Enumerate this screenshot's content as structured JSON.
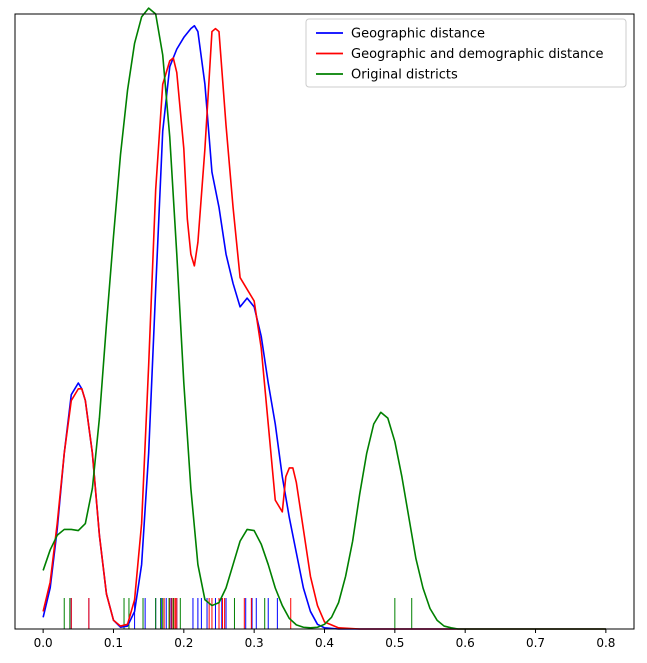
{
  "chart_data": {
    "type": "line",
    "title": "",
    "xlabel": "",
    "ylabel": "",
    "xlim": [
      -0.04,
      0.84
    ],
    "ylim": [
      0,
      1.05
    ],
    "yticks_visible": false,
    "xticks": [
      0.0,
      0.1,
      0.2,
      0.3,
      0.4,
      0.5,
      0.6,
      0.7,
      0.8
    ],
    "xtick_labels": [
      "0.0",
      "0.1",
      "0.2",
      "0.3",
      "0.4",
      "0.5",
      "0.6",
      "0.7",
      "0.8"
    ],
    "legend_position": "top-right",
    "series": [
      {
        "name": "Geographic distance",
        "color": "#0000ff",
        "x": [
          0.0,
          0.01,
          0.02,
          0.03,
          0.04,
          0.05,
          0.055,
          0.06,
          0.07,
          0.08,
          0.09,
          0.1,
          0.11,
          0.12,
          0.13,
          0.14,
          0.15,
          0.16,
          0.17,
          0.18,
          0.19,
          0.2,
          0.21,
          0.215,
          0.22,
          0.23,
          0.24,
          0.25,
          0.26,
          0.27,
          0.28,
          0.29,
          0.3,
          0.31,
          0.32,
          0.33,
          0.34,
          0.35,
          0.36,
          0.37,
          0.38,
          0.39,
          0.4,
          0.42,
          0.45,
          0.5,
          0.6,
          0.7,
          0.8
        ],
        "y": [
          0.02,
          0.07,
          0.17,
          0.3,
          0.4,
          0.42,
          0.41,
          0.39,
          0.3,
          0.16,
          0.06,
          0.015,
          0.003,
          0.005,
          0.03,
          0.11,
          0.3,
          0.58,
          0.85,
          0.96,
          0.99,
          1.01,
          1.025,
          1.03,
          1.02,
          0.93,
          0.78,
          0.72,
          0.64,
          0.59,
          0.55,
          0.565,
          0.55,
          0.5,
          0.42,
          0.35,
          0.26,
          0.19,
          0.13,
          0.07,
          0.03,
          0.008,
          0.002,
          0.0,
          0.0,
          0.0,
          0.0,
          0.0,
          0.0
        ]
      },
      {
        "name": "Geographic and demographic distance",
        "color": "#ff0000",
        "x": [
          0.0,
          0.01,
          0.02,
          0.03,
          0.04,
          0.05,
          0.055,
          0.06,
          0.07,
          0.08,
          0.09,
          0.1,
          0.11,
          0.12,
          0.13,
          0.14,
          0.15,
          0.16,
          0.17,
          0.18,
          0.185,
          0.19,
          0.2,
          0.205,
          0.21,
          0.215,
          0.22,
          0.23,
          0.24,
          0.245,
          0.25,
          0.26,
          0.27,
          0.28,
          0.29,
          0.3,
          0.31,
          0.32,
          0.33,
          0.34,
          0.345,
          0.35,
          0.355,
          0.36,
          0.37,
          0.38,
          0.39,
          0.4,
          0.42,
          0.45,
          0.5,
          0.6,
          0.7,
          0.8
        ],
        "y": [
          0.03,
          0.08,
          0.18,
          0.3,
          0.39,
          0.41,
          0.41,
          0.39,
          0.3,
          0.16,
          0.06,
          0.015,
          0.005,
          0.008,
          0.05,
          0.18,
          0.45,
          0.75,
          0.93,
          0.97,
          0.975,
          0.95,
          0.82,
          0.7,
          0.64,
          0.62,
          0.66,
          0.82,
          1.02,
          1.025,
          1.02,
          0.86,
          0.72,
          0.6,
          0.58,
          0.56,
          0.48,
          0.35,
          0.22,
          0.2,
          0.26,
          0.275,
          0.275,
          0.25,
          0.17,
          0.09,
          0.04,
          0.012,
          0.002,
          0.0,
          0.0,
          0.0,
          0.0,
          0.0
        ]
      },
      {
        "name": "Original districts",
        "color": "#008000",
        "x": [
          0.0,
          0.01,
          0.02,
          0.03,
          0.04,
          0.05,
          0.06,
          0.07,
          0.08,
          0.09,
          0.1,
          0.11,
          0.12,
          0.13,
          0.14,
          0.15,
          0.16,
          0.17,
          0.18,
          0.19,
          0.2,
          0.21,
          0.22,
          0.23,
          0.24,
          0.25,
          0.26,
          0.27,
          0.28,
          0.29,
          0.3,
          0.31,
          0.32,
          0.33,
          0.34,
          0.35,
          0.36,
          0.37,
          0.38,
          0.39,
          0.4,
          0.41,
          0.42,
          0.43,
          0.44,
          0.45,
          0.46,
          0.47,
          0.48,
          0.49,
          0.5,
          0.51,
          0.52,
          0.53,
          0.54,
          0.55,
          0.56,
          0.57,
          0.58,
          0.59,
          0.6,
          0.62,
          0.65,
          0.7,
          0.8
        ],
        "y": [
          0.1,
          0.135,
          0.16,
          0.17,
          0.17,
          0.168,
          0.18,
          0.24,
          0.36,
          0.52,
          0.67,
          0.81,
          0.92,
          1.0,
          1.045,
          1.06,
          1.05,
          0.98,
          0.84,
          0.64,
          0.42,
          0.24,
          0.11,
          0.05,
          0.04,
          0.045,
          0.07,
          0.11,
          0.15,
          0.17,
          0.168,
          0.145,
          0.11,
          0.07,
          0.04,
          0.018,
          0.007,
          0.003,
          0.002,
          0.003,
          0.008,
          0.02,
          0.045,
          0.09,
          0.15,
          0.23,
          0.3,
          0.35,
          0.37,
          0.36,
          0.32,
          0.26,
          0.19,
          0.12,
          0.07,
          0.035,
          0.015,
          0.005,
          0.002,
          0.0,
          0.0,
          0.0,
          0.0,
          0.0,
          0.0
        ]
      }
    ],
    "rug": [
      {
        "series": "Geographic distance",
        "color": "#0000ff",
        "values": [
          0.04,
          0.065,
          0.13,
          0.145,
          0.16,
          0.168,
          0.175,
          0.182,
          0.19,
          0.213,
          0.22,
          0.225,
          0.233,
          0.245,
          0.254,
          0.26,
          0.288,
          0.297,
          0.303,
          0.32,
          0.333
        ]
      },
      {
        "series": "Geographic and demographic distance",
        "color": "#ff0000",
        "values": [
          0.04,
          0.065,
          0.172,
          0.18,
          0.183,
          0.186,
          0.188,
          0.19,
          0.236,
          0.24,
          0.25,
          0.255,
          0.258,
          0.286,
          0.296,
          0.352
        ]
      },
      {
        "series": "Original districts",
        "color": "#008000",
        "values": [
          0.03,
          0.038,
          0.115,
          0.122,
          0.142,
          0.16,
          0.167,
          0.17,
          0.179,
          0.185,
          0.195,
          0.272,
          0.315,
          0.5,
          0.524
        ]
      }
    ]
  }
}
